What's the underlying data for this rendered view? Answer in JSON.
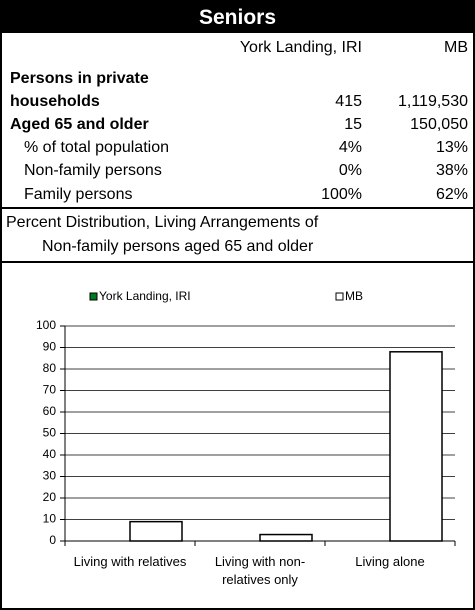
{
  "header": {
    "title": "Seniors"
  },
  "table": {
    "columns": [
      "York Landing, IRI",
      "MB"
    ],
    "rows": [
      [
        "Persons in private"
      ],
      [
        "households",
        "415",
        "1,119,530"
      ],
      [
        "Aged 65 and older",
        "15",
        "150,050"
      ],
      [
        "% of total population",
        "4%",
        "13%"
      ],
      [
        "Non-family persons",
        "0%",
        "38%"
      ],
      [
        "Family persons",
        "100%",
        "62%"
      ]
    ]
  },
  "section": {
    "title_line1": "Percent Distribution, Living Arrangements of",
    "title_line2": "Non-family persons aged 65 and older"
  },
  "chart_data": {
    "type": "bar",
    "categories": [
      "Living with relatives",
      "Living with non-relatives only",
      "Living alone"
    ],
    "series": [
      {
        "name": "York Landing, IRI",
        "color": "#007a1e",
        "values": [
          0,
          0,
          0
        ]
      },
      {
        "name": "MB",
        "color": "#ffffff",
        "values": [
          9,
          3,
          88
        ]
      }
    ],
    "ylim": [
      0,
      100
    ],
    "yticks": [
      0,
      10,
      20,
      30,
      40,
      50,
      60,
      70,
      80,
      90,
      100
    ],
    "grid": true
  }
}
